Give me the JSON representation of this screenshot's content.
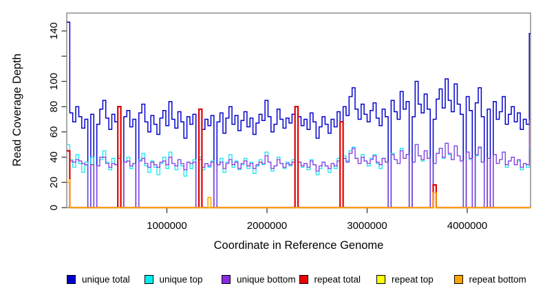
{
  "figure": {
    "x_axis_title": "Coordinate in Reference Genome",
    "y_axis_title": "Read Coverage Depth",
    "background": "#ffffff",
    "box_color": "#7d7d7d",
    "tick_color": "#3a3a3a"
  },
  "chart_data": {
    "type": "line",
    "style": "step-after",
    "title": "",
    "xlabel": "Coordinate in Reference Genome",
    "ylabel": "Read Coverage Depth",
    "xlim": [
      0,
      4650000
    ],
    "ylim": [
      0,
      147
    ],
    "grid": false,
    "legend_position": "bottom",
    "x_start": 0,
    "x_step": 30000,
    "n_points": 155,
    "x_ticks": [
      {
        "value": 1000000,
        "label": "1000000"
      },
      {
        "value": 2000000,
        "label": "2000000"
      },
      {
        "value": 3000000,
        "label": "3000000"
      },
      {
        "value": 4000000,
        "label": "4000000"
      }
    ],
    "y_ticks": [
      {
        "value": 0,
        "label": "0"
      },
      {
        "value": 20,
        "label": "20"
      },
      {
        "value": 40,
        "label": "40"
      },
      {
        "value": 60,
        "label": "60"
      },
      {
        "value": 80,
        "label": "80"
      },
      {
        "value": 100,
        "label": "100"
      },
      {
        "value": 120,
        "label": ""
      },
      {
        "value": 140,
        "label": "140"
      }
    ],
    "series": [
      {
        "name": "unique total",
        "color": "#0000CD",
        "width": 1.5,
        "values": [
          147,
          75,
          68,
          80,
          72,
          63,
          70,
          0,
          74,
          0,
          66,
          78,
          85,
          71,
          62,
          74,
          68,
          80,
          0,
          72,
          77,
          64,
          70,
          0,
          75,
          82,
          68,
          60,
          73,
          66,
          58,
          71,
          77,
          65,
          84,
          70,
          63,
          76,
          68,
          55,
          72,
          66,
          74,
          0,
          78,
          62,
          70,
          65,
          73,
          0,
          68,
          75,
          59,
          71,
          80,
          66,
          73,
          61,
          69,
          76,
          64,
          71,
          58,
          67,
          74,
          69,
          85,
          72,
          60,
          66,
          78,
          70,
          63,
          71,
          67,
          74,
          0,
          72,
          65,
          70,
          62,
          75,
          68,
          55,
          64,
          72,
          66,
          59,
          70,
          64,
          76,
          0,
          80,
          73,
          88,
          95,
          78,
          70,
          82,
          74,
          68,
          77,
          83,
          71,
          65,
          78,
          72,
          0,
          85,
          76,
          70,
          92,
          78,
          84,
          0,
          72,
          100,
          82,
          75,
          90,
          78,
          0,
          70,
          86,
          94,
          79,
          102,
          85,
          76,
          98,
          82,
          74,
          0,
          88,
          77,
          0,
          83,
          95,
          72,
          0,
          78,
          0,
          84,
          70,
          76,
          88,
          66,
          74,
          80,
          68,
          75,
          62,
          70,
          66,
          138
        ]
      },
      {
        "name": "unique top",
        "color": "#00E5EE",
        "width": 1.2,
        "values": [
          50,
          38,
          32,
          42,
          35,
          28,
          36,
          0,
          40,
          0,
          33,
          38,
          45,
          36,
          30,
          39,
          34,
          41,
          0,
          36,
          40,
          31,
          35,
          0,
          38,
          43,
          33,
          28,
          37,
          32,
          26,
          35,
          40,
          31,
          44,
          35,
          30,
          38,
          33,
          25,
          36,
          31,
          38,
          0,
          40,
          30,
          35,
          32,
          37,
          0,
          34,
          39,
          28,
          36,
          42,
          32,
          37,
          30,
          34,
          39,
          31,
          36,
          27,
          33,
          38,
          34,
          44,
          36,
          29,
          33,
          40,
          35,
          31,
          36,
          33,
          38,
          0,
          36,
          32,
          35,
          30,
          38,
          34,
          26,
          31,
          36,
          33,
          28,
          35,
          31,
          39,
          0,
          41,
          37,
          45,
          48,
          39,
          35,
          42,
          37,
          33,
          39,
          42,
          35,
          31,
          39,
          36,
          0,
          43,
          38,
          35,
          47,
          39,
          42,
          0,
          36,
          50,
          41,
          37,
          45,
          39,
          0,
          35,
          43,
          47,
          39,
          51,
          42,
          38,
          49,
          41,
          37,
          0,
          44,
          38,
          0,
          41,
          47,
          36,
          0,
          39,
          0,
          42,
          35,
          38,
          44,
          32,
          37,
          40,
          34,
          37,
          30,
          35,
          32,
          45
        ]
      },
      {
        "name": "unique bottom",
        "color": "#8A2BE2",
        "width": 1.2,
        "values": [
          45,
          37,
          36,
          38,
          37,
          35,
          34,
          0,
          34,
          0,
          33,
          40,
          40,
          35,
          32,
          35,
          34,
          39,
          0,
          36,
          37,
          33,
          35,
          0,
          37,
          39,
          35,
          32,
          36,
          34,
          32,
          36,
          37,
          34,
          40,
          35,
          33,
          38,
          35,
          30,
          36,
          35,
          36,
          0,
          38,
          32,
          35,
          33,
          36,
          0,
          34,
          36,
          31,
          35,
          38,
          34,
          36,
          31,
          35,
          37,
          33,
          35,
          31,
          34,
          36,
          35,
          41,
          36,
          31,
          33,
          38,
          35,
          32,
          35,
          34,
          36,
          0,
          36,
          33,
          35,
          32,
          37,
          34,
          29,
          33,
          36,
          33,
          31,
          35,
          33,
          37,
          0,
          39,
          36,
          43,
          47,
          39,
          35,
          40,
          37,
          35,
          38,
          41,
          36,
          34,
          39,
          36,
          0,
          42,
          38,
          35,
          45,
          39,
          42,
          0,
          36,
          50,
          41,
          38,
          45,
          39,
          0,
          35,
          43,
          47,
          40,
          51,
          43,
          38,
          49,
          41,
          37,
          0,
          44,
          39,
          0,
          42,
          48,
          36,
          0,
          39,
          0,
          42,
          35,
          38,
          44,
          34,
          37,
          40,
          34,
          38,
          32,
          35,
          34,
          70
        ]
      },
      {
        "name": "repeat total",
        "color": "#E00000",
        "width": 2.2,
        "default": 0,
        "spikes": {
          "0": 45,
          "17": 80,
          "44": 78,
          "76": 80,
          "91": 68,
          "122": 18
        }
      },
      {
        "name": "repeat top",
        "color": "#FFFF00",
        "width": 1.4,
        "default": 0,
        "spikes": {
          "0": 22
        }
      },
      {
        "name": "repeat bottom",
        "color": "#FFA500",
        "width": 1.6,
        "default": 0,
        "spikes": {
          "0": 20,
          "47": 8,
          "122": 12
        }
      }
    ],
    "legend": [
      {
        "label": "unique total",
        "color": "#0000CD"
      },
      {
        "label": "unique top",
        "color": "#00EEEE"
      },
      {
        "label": "unique bottom",
        "color": "#8A2BE2"
      },
      {
        "label": "repeat total",
        "color": "#EE0000"
      },
      {
        "label": "repeat top",
        "color": "#FFFF00"
      },
      {
        "label": "repeat bottom",
        "color": "#FFA500"
      }
    ]
  }
}
